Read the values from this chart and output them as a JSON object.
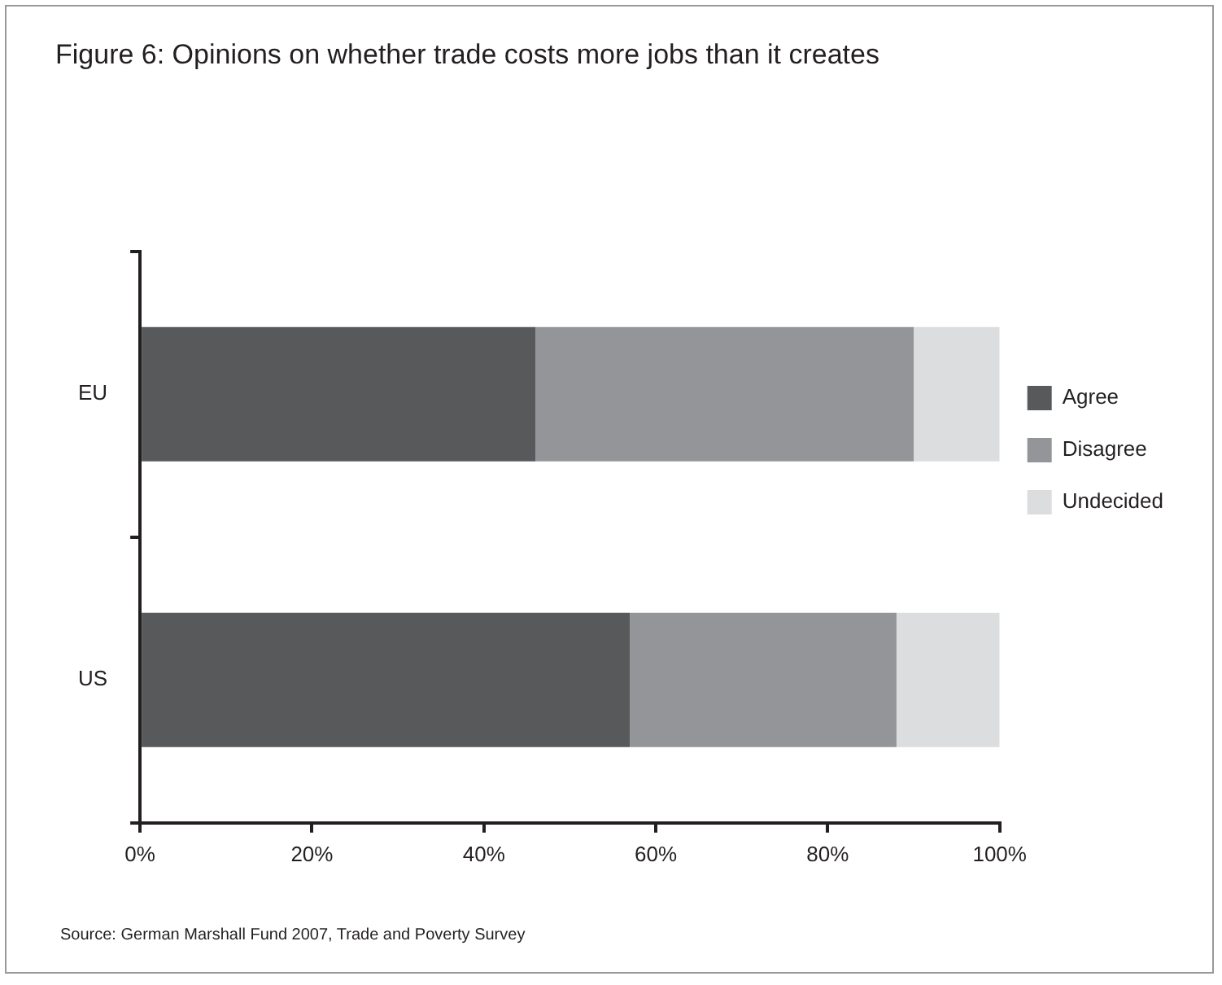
{
  "chart_data": {
    "type": "bar",
    "orientation": "horizontal",
    "stacked": true,
    "title": "Figure 6: Opinions on whether trade costs more jobs than it creates",
    "categories": [
      "EU",
      "US"
    ],
    "series": [
      {
        "name": "Agree",
        "color": "#58595b",
        "values": [
          46,
          57
        ]
      },
      {
        "name": "Disagree",
        "color": "#939598",
        "values": [
          44,
          31
        ]
      },
      {
        "name": "Undecided",
        "color": "#dcdddf",
        "values": [
          10,
          12
        ]
      }
    ],
    "xlim": [
      0,
      100
    ],
    "xticks": [
      {
        "value": 0,
        "label": "0%"
      },
      {
        "value": 20,
        "label": "20%"
      },
      {
        "value": 40,
        "label": "40%"
      },
      {
        "value": 60,
        "label": "60%"
      },
      {
        "value": 80,
        "label": "80%"
      },
      {
        "value": 100,
        "label": "100%"
      }
    ],
    "grid": false,
    "legend": "right",
    "annotations": [
      "Source: German Marshall Fund 2007, Trade and Poverty Survey"
    ]
  }
}
